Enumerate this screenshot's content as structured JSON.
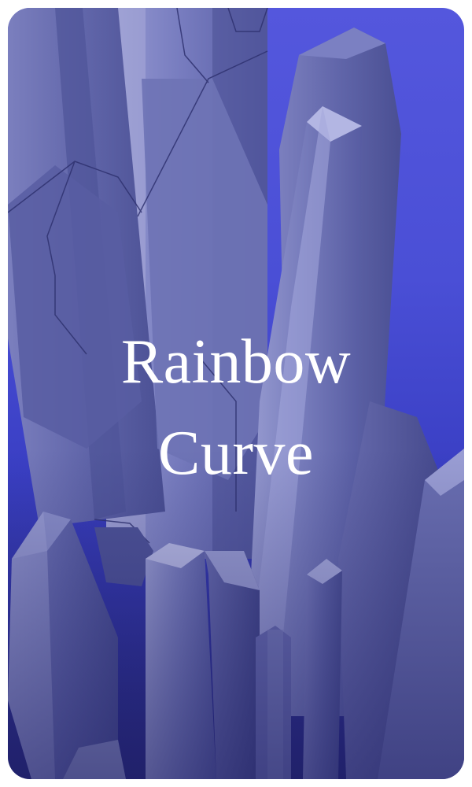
{
  "card": {
    "title_line_1": "Rainbow",
    "title_line_2": "Curve",
    "background_top": "#5457dd",
    "background_bottom": "#25267a",
    "crystal_color": "#8a8fc4",
    "text_color": "#ffffff"
  }
}
